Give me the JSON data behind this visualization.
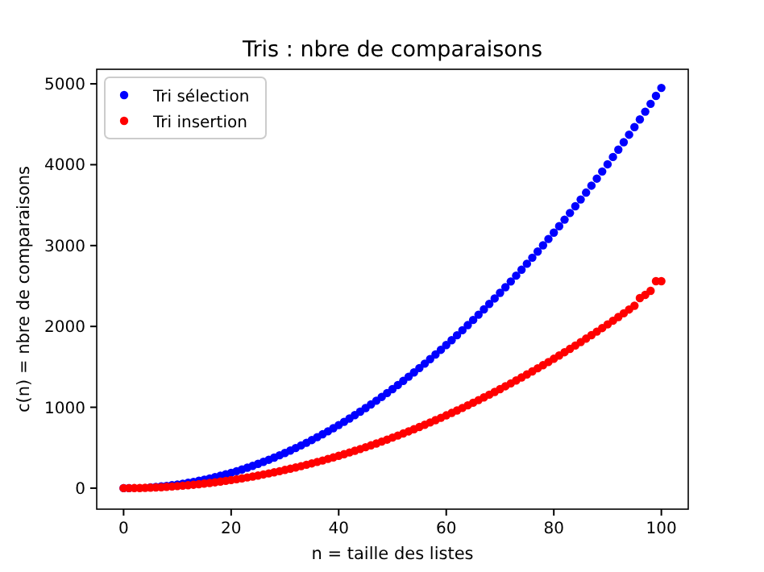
{
  "chart_data": {
    "type": "scatter",
    "title": "Tris : nbre de comparaisons",
    "xlabel": "n = taille des listes",
    "ylabel": "c(n) = nbre de comparaisons",
    "x": [
      0,
      1,
      2,
      3,
      4,
      5,
      6,
      7,
      8,
      9,
      10,
      11,
      12,
      13,
      14,
      15,
      16,
      17,
      18,
      19,
      20,
      21,
      22,
      23,
      24,
      25,
      26,
      27,
      28,
      29,
      30,
      31,
      32,
      33,
      34,
      35,
      36,
      37,
      38,
      39,
      40,
      41,
      42,
      43,
      44,
      45,
      46,
      47,
      48,
      49,
      50,
      51,
      52,
      53,
      54,
      55,
      56,
      57,
      58,
      59,
      60,
      61,
      62,
      63,
      64,
      65,
      66,
      67,
      68,
      69,
      70,
      71,
      72,
      73,
      74,
      75,
      76,
      77,
      78,
      79,
      80,
      81,
      82,
      83,
      84,
      85,
      86,
      87,
      88,
      89,
      90,
      91,
      92,
      93,
      94,
      95,
      96,
      97,
      98,
      99,
      100
    ],
    "series": [
      {
        "name": "Tri sélection",
        "color": "#0000ff",
        "values": [
          0,
          0,
          null,
          null,
          null,
          10,
          15,
          21,
          28,
          36,
          45,
          55,
          66,
          78,
          91,
          105,
          120,
          136,
          153,
          171,
          190,
          210,
          231,
          253,
          276,
          300,
          325,
          351,
          378,
          406,
          435,
          465,
          496,
          528,
          561,
          595,
          630,
          666,
          703,
          741,
          780,
          820,
          861,
          903,
          946,
          990,
          1035,
          1081,
          1128,
          1176,
          1225,
          1275,
          1326,
          1378,
          1431,
          1485,
          1540,
          1596,
          1653,
          1711,
          1770,
          1830,
          1891,
          1953,
          2016,
          2080,
          2145,
          2211,
          2278,
          2346,
          2415,
          2485,
          2556,
          2628,
          2701,
          2775,
          2850,
          2926,
          3003,
          3081,
          3160,
          3240,
          3321,
          3403,
          3486,
          3570,
          3655,
          3741,
          3828,
          3916,
          4005,
          4095,
          4186,
          4278,
          4371,
          4465,
          4560,
          4656,
          4753,
          4851,
          4950
        ]
      },
      {
        "name": "Tri insertion",
        "color": "#ff0000",
        "values": [
          0,
          0,
          1,
          2,
          4,
          6,
          9,
          12,
          16,
          20,
          25,
          30,
          36,
          42,
          49,
          56,
          64,
          72,
          81,
          90,
          100,
          110,
          121,
          132,
          144,
          156,
          169,
          182,
          196,
          210,
          225,
          240,
          256,
          272,
          289,
          306,
          324,
          342,
          361,
          380,
          400,
          420,
          441,
          462,
          484,
          506,
          529,
          552,
          576,
          600,
          625,
          650,
          676,
          702,
          729,
          756,
          784,
          812,
          841,
          870,
          900,
          930,
          961,
          992,
          1024,
          1056,
          1089,
          1122,
          1156,
          1190,
          1225,
          1260,
          1296,
          1332,
          1369,
          1406,
          1444,
          1482,
          1521,
          1560,
          1600,
          1640,
          1681,
          1722,
          1764,
          1806,
          1849,
          1892,
          1936,
          1980,
          2025,
          2070,
          2116,
          2162,
          2209,
          2256,
          2350,
          2390,
          2440,
          2560,
          2560
        ]
      }
    ],
    "xlim": [
      -5,
      105
    ],
    "ylim": [
      -260,
      5180
    ],
    "xticks": [
      0,
      20,
      40,
      60,
      80,
      100
    ],
    "yticks": [
      0,
      1000,
      2000,
      3000,
      4000,
      5000
    ],
    "grid": false,
    "legend": "top left",
    "marker": "circle"
  }
}
